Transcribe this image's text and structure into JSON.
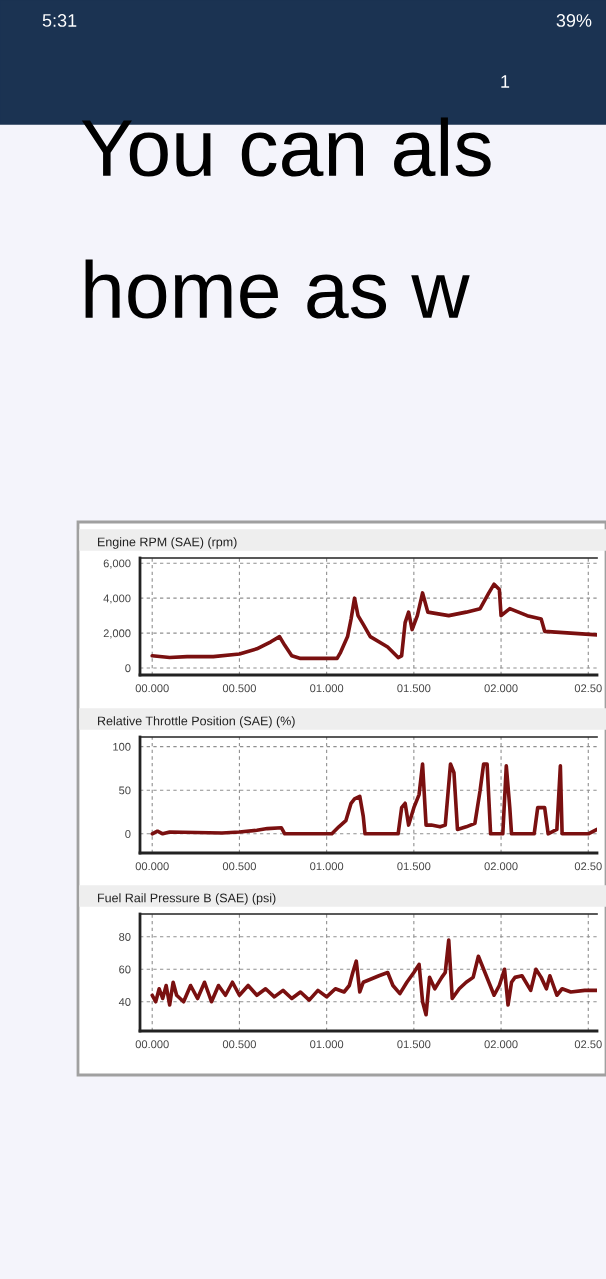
{
  "chart_data": [
    {
      "type": "other",
      "annotations": [
        "5:31",
        "39%",
        "1",
        "You can als",
        "home as w"
      ]
    },
    {
      "type": "line",
      "title": "Engine RPM (SAE) (rpm)",
      "xlim": [
        -0.07,
        2.55
      ],
      "xticks": [
        {
          "value": 0,
          "label": "00.000"
        },
        {
          "value": 0.5,
          "label": "00.500"
        },
        {
          "value": 1.0,
          "label": "01.000"
        },
        {
          "value": 1.5,
          "label": "01.500"
        },
        {
          "value": 2.0,
          "label": "02.000"
        },
        {
          "value": 2.5,
          "label": "02.50"
        }
      ],
      "ylim": [
        -400,
        6300
      ],
      "yticks": [
        {
          "value": 0,
          "label": "0"
        },
        {
          "value": 2000,
          "label": "2,000"
        },
        {
          "value": 4000,
          "label": "4,000"
        },
        {
          "value": 6000,
          "label": "6,000"
        }
      ],
      "grid": true,
      "series": [
        {
          "color": "#7a1010",
          "x": [
            0.0,
            0.1,
            0.2,
            0.35,
            0.5,
            0.6,
            0.68,
            0.73,
            0.76,
            0.8,
            0.85,
            1.0,
            1.06,
            1.08,
            1.12,
            1.14,
            1.16,
            1.18,
            1.21,
            1.25,
            1.35,
            1.41,
            1.43,
            1.45,
            1.47,
            1.49,
            1.52,
            1.55,
            1.58,
            1.7,
            1.8,
            1.88,
            1.93,
            1.96,
            1.99,
            2.0,
            2.05,
            2.15,
            2.23,
            2.25,
            2.4,
            2.55
          ],
          "values": [
            700,
            600,
            650,
            650,
            800,
            1100,
            1500,
            1800,
            1300,
            700,
            550,
            550,
            550,
            900,
            1800,
            2800,
            4000,
            3000,
            2500,
            1800,
            1200,
            600,
            700,
            2600,
            3200,
            2200,
            3000,
            4300,
            3200,
            3000,
            3200,
            3400,
            4300,
            4800,
            4500,
            3000,
            3400,
            3000,
            2800,
            2100,
            2000,
            1900
          ]
        }
      ]
    },
    {
      "type": "line",
      "title": "Relative Throttle Position (SAE) (%)",
      "xlim": [
        -0.07,
        2.55
      ],
      "xticks": [
        {
          "value": 0,
          "label": "00.000"
        },
        {
          "value": 0.5,
          "label": "00.500"
        },
        {
          "value": 1.0,
          "label": "01.000"
        },
        {
          "value": 1.5,
          "label": "01.500"
        },
        {
          "value": 2.0,
          "label": "02.000"
        },
        {
          "value": 2.5,
          "label": "02.50"
        }
      ],
      "ylim": [
        -22,
        111
      ],
      "yticks": [
        0,
        50,
        100
      ],
      "grid": true,
      "series": [
        {
          "color": "#7a1010",
          "x": [
            0.0,
            0.03,
            0.06,
            0.1,
            0.4,
            0.5,
            0.6,
            0.66,
            0.74,
            0.76,
            1.03,
            1.07,
            1.11,
            1.14,
            1.16,
            1.19,
            1.21,
            1.22,
            1.41,
            1.43,
            1.45,
            1.47,
            1.5,
            1.53,
            1.55,
            1.57,
            1.6,
            1.65,
            1.68,
            1.71,
            1.73,
            1.75,
            1.8,
            1.85,
            1.88,
            1.9,
            1.92,
            1.94,
            2.01,
            2.03,
            2.05,
            2.06,
            2.19,
            2.21,
            2.25,
            2.27,
            2.32,
            2.34,
            2.35,
            2.5,
            2.55
          ],
          "values": [
            0,
            3,
            0,
            2,
            1,
            2,
            4,
            6,
            7,
            0,
            0,
            8,
            15,
            35,
            40,
            43,
            20,
            0,
            0,
            30,
            35,
            10,
            30,
            45,
            80,
            10,
            10,
            8,
            10,
            80,
            70,
            5,
            8,
            12,
            50,
            80,
            80,
            0,
            0,
            78,
            30,
            0,
            0,
            30,
            30,
            0,
            5,
            78,
            0,
            0,
            5
          ]
        }
      ]
    },
    {
      "type": "line",
      "title": "Fuel Rail Pressure B (SAE) (psi)",
      "xlim": [
        -0.07,
        2.55
      ],
      "xticks": [
        {
          "value": 0,
          "label": "00.000"
        },
        {
          "value": 0.5,
          "label": "00.500"
        },
        {
          "value": 1.0,
          "label": "01.000"
        },
        {
          "value": 1.5,
          "label": "01.500"
        },
        {
          "value": 2.0,
          "label": "02.000"
        },
        {
          "value": 2.5,
          "label": "02.50"
        }
      ],
      "ylim": [
        22,
        94
      ],
      "yticks": [
        40,
        60,
        80
      ],
      "grid": true,
      "series": [
        {
          "color": "#7a1010",
          "x": [
            0.0,
            0.02,
            0.04,
            0.06,
            0.08,
            0.1,
            0.12,
            0.14,
            0.18,
            0.22,
            0.26,
            0.3,
            0.34,
            0.38,
            0.42,
            0.46,
            0.5,
            0.55,
            0.6,
            0.65,
            0.7,
            0.75,
            0.8,
            0.85,
            0.9,
            0.95,
            1.0,
            1.05,
            1.1,
            1.13,
            1.15,
            1.17,
            1.19,
            1.21,
            1.3,
            1.35,
            1.38,
            1.42,
            1.46,
            1.5,
            1.53,
            1.55,
            1.57,
            1.59,
            1.62,
            1.66,
            1.68,
            1.7,
            1.72,
            1.76,
            1.8,
            1.84,
            1.87,
            1.9,
            1.93,
            1.96,
            1.99,
            2.02,
            2.04,
            2.06,
            2.08,
            2.12,
            2.17,
            2.2,
            2.23,
            2.26,
            2.28,
            2.32,
            2.35,
            2.4,
            2.48,
            2.55
          ],
          "values": [
            44,
            40,
            48,
            42,
            50,
            38,
            52,
            44,
            40,
            50,
            42,
            52,
            40,
            50,
            44,
            52,
            44,
            50,
            44,
            48,
            43,
            47,
            42,
            46,
            41,
            47,
            43,
            48,
            46,
            50,
            58,
            65,
            46,
            52,
            56,
            58,
            50,
            45,
            52,
            58,
            63,
            40,
            32,
            55,
            48,
            55,
            58,
            78,
            42,
            48,
            52,
            55,
            68,
            60,
            52,
            44,
            50,
            60,
            38,
            52,
            55,
            56,
            47,
            60,
            55,
            48,
            56,
            44,
            48,
            46,
            47,
            47
          ]
        }
      ]
    }
  ]
}
